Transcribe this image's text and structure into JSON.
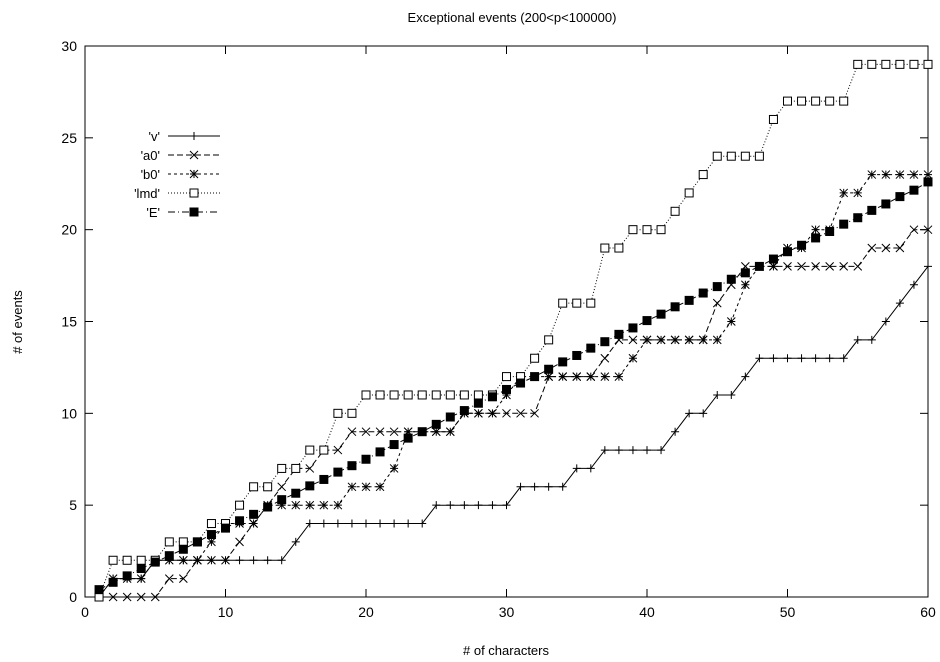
{
  "chart_data": {
    "type": "line",
    "title": "Exceptional events (200<p<100000)",
    "xlabel": "# of characters",
    "ylabel": "# of events",
    "xlim": [
      0,
      60
    ],
    "ylim": [
      0,
      30
    ],
    "xticks": [
      0,
      10,
      20,
      30,
      40,
      50,
      60
    ],
    "yticks": [
      0,
      5,
      10,
      15,
      20,
      25,
      30
    ],
    "grid": false,
    "legend_position": "top-left",
    "series": [
      {
        "name": "'v'",
        "marker": "plus",
        "dash": "solid",
        "x": [
          1,
          2,
          3,
          4,
          5,
          6,
          7,
          8,
          9,
          10,
          11,
          12,
          13,
          14,
          15,
          16,
          17,
          18,
          19,
          20,
          21,
          22,
          23,
          24,
          25,
          26,
          27,
          28,
          29,
          30,
          31,
          32,
          33,
          34,
          35,
          36,
          37,
          38,
          39,
          40,
          41,
          42,
          43,
          44,
          45,
          46,
          47,
          48,
          49,
          50,
          51,
          52,
          53,
          54,
          55,
          56,
          57,
          58,
          59,
          60
        ],
        "y": [
          0,
          1,
          1,
          1,
          2,
          2,
          2,
          2,
          2,
          2,
          2,
          2,
          2,
          2,
          3,
          4,
          4,
          4,
          4,
          4,
          4,
          4,
          4,
          4,
          5,
          5,
          5,
          5,
          5,
          5,
          6,
          6,
          6,
          6,
          7,
          7,
          8,
          8,
          8,
          8,
          8,
          9,
          10,
          10,
          11,
          11,
          12,
          13,
          13,
          13,
          13,
          13,
          13,
          13,
          14,
          14,
          15,
          16,
          17,
          18
        ]
      },
      {
        "name": "'a0'",
        "marker": "cross",
        "dash": "dashed",
        "x": [
          1,
          2,
          3,
          4,
          5,
          6,
          7,
          8,
          9,
          10,
          11,
          12,
          13,
          14,
          15,
          16,
          17,
          18,
          19,
          20,
          21,
          22,
          23,
          24,
          25,
          26,
          27,
          28,
          29,
          30,
          31,
          32,
          33,
          34,
          35,
          36,
          37,
          38,
          39,
          40,
          41,
          42,
          43,
          44,
          45,
          46,
          47,
          48,
          49,
          50,
          51,
          52,
          53,
          54,
          55,
          56,
          57,
          58,
          59,
          60
        ],
        "y": [
          0,
          0,
          0,
          0,
          0,
          1,
          1,
          2,
          2,
          2,
          3,
          4,
          5,
          6,
          7,
          7,
          8,
          8,
          9,
          9,
          9,
          9,
          9,
          9,
          9,
          9,
          10,
          10,
          10,
          10,
          10,
          10,
          12,
          12,
          12,
          12,
          13,
          14,
          14,
          14,
          14,
          14,
          14,
          14,
          16,
          17,
          18,
          18,
          18,
          18,
          18,
          18,
          18,
          18,
          18,
          19,
          19,
          19,
          20,
          20
        ]
      },
      {
        "name": "'b0'",
        "marker": "star",
        "dash": "shortdash",
        "x": [
          1,
          2,
          3,
          4,
          5,
          6,
          7,
          8,
          9,
          10,
          11,
          12,
          13,
          14,
          15,
          16,
          17,
          18,
          19,
          20,
          21,
          22,
          23,
          24,
          25,
          26,
          27,
          28,
          29,
          30,
          31,
          32,
          33,
          34,
          35,
          36,
          37,
          38,
          39,
          40,
          41,
          42,
          43,
          44,
          45,
          46,
          47,
          48,
          49,
          50,
          51,
          52,
          53,
          54,
          55,
          56,
          57,
          58,
          59,
          60
        ],
        "y": [
          0,
          1,
          1,
          1,
          2,
          2,
          2,
          2,
          3,
          4,
          4,
          4,
          5,
          5,
          5,
          5,
          5,
          5,
          6,
          6,
          6,
          7,
          9,
          9,
          9,
          9,
          10,
          10,
          10,
          11,
          12,
          12,
          12,
          12,
          12,
          12,
          12,
          12,
          13,
          14,
          14,
          14,
          14,
          14,
          14,
          15,
          17,
          18,
          18,
          19,
          19,
          20,
          20,
          22,
          22,
          23,
          23,
          23,
          23,
          23
        ]
      },
      {
        "name": "'lmd'",
        "marker": "square-open",
        "dash": "dotted",
        "x": [
          1,
          2,
          3,
          4,
          5,
          6,
          7,
          8,
          9,
          10,
          11,
          12,
          13,
          14,
          15,
          16,
          17,
          18,
          19,
          20,
          21,
          22,
          23,
          24,
          25,
          26,
          27,
          28,
          29,
          30,
          31,
          32,
          33,
          34,
          35,
          36,
          37,
          38,
          39,
          40,
          41,
          42,
          43,
          44,
          45,
          46,
          47,
          48,
          49,
          50,
          51,
          52,
          53,
          54,
          55,
          56,
          57,
          58,
          59,
          60
        ],
        "y": [
          0,
          2,
          2,
          2,
          2,
          3,
          3,
          3,
          4,
          4,
          5,
          6,
          6,
          7,
          7,
          8,
          8,
          10,
          10,
          11,
          11,
          11,
          11,
          11,
          11,
          11,
          11,
          11,
          11,
          12,
          12,
          13,
          14,
          16,
          16,
          16,
          19,
          19,
          20,
          20,
          20,
          21,
          22,
          23,
          24,
          24,
          24,
          24,
          26,
          27,
          27,
          27,
          27,
          27,
          29,
          29,
          29,
          29,
          29,
          29
        ]
      },
      {
        "name": "'E'",
        "marker": "square-filled",
        "dash": "dashdot",
        "x": [
          1,
          2,
          3,
          4,
          5,
          6,
          7,
          8,
          9,
          10,
          11,
          12,
          13,
          14,
          15,
          16,
          17,
          18,
          19,
          20,
          21,
          22,
          23,
          24,
          25,
          26,
          27,
          28,
          29,
          30,
          31,
          32,
          33,
          34,
          35,
          36,
          37,
          38,
          39,
          40,
          41,
          42,
          43,
          44,
          45,
          46,
          47,
          48,
          49,
          50,
          51,
          52,
          53,
          54,
          55,
          56,
          57,
          58,
          59,
          60
        ],
        "y": [
          0.4,
          0.8,
          1.15,
          1.55,
          1.9,
          2.25,
          2.6,
          3.0,
          3.4,
          3.75,
          4.15,
          4.5,
          4.9,
          5.3,
          5.65,
          6.05,
          6.4,
          6.8,
          7.15,
          7.5,
          7.9,
          8.3,
          8.65,
          9.0,
          9.4,
          9.8,
          10.15,
          10.55,
          10.9,
          11.3,
          11.65,
          12.0,
          12.4,
          12.8,
          13.15,
          13.55,
          13.9,
          14.3,
          14.65,
          15.05,
          15.4,
          15.8,
          16.15,
          16.55,
          16.9,
          17.3,
          17.65,
          18.0,
          18.4,
          18.8,
          19.15,
          19.55,
          19.9,
          20.3,
          20.65,
          21.05,
          21.4,
          21.8,
          22.15,
          22.6
        ]
      }
    ]
  }
}
